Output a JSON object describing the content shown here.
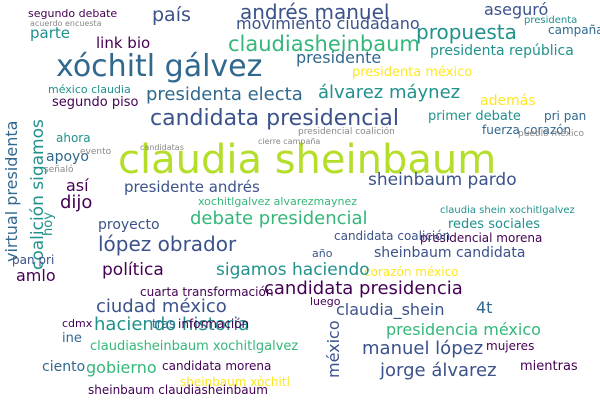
{
  "palette": {
    "dark_purple": "#440154",
    "indigo": "#3b528b",
    "teal_blue": "#31688e",
    "teal": "#21918c",
    "green": "#35b779",
    "lime": "#b5de2b",
    "yellow": "#fde725",
    "gray": "#888888"
  },
  "words": [
    {
      "text": "claudia sheinbaum",
      "color": "#b5de2b"
    },
    {
      "text": "xóchitl gálvez",
      "color": "#31688e"
    },
    {
      "text": "candidata presidencial",
      "color": "#3b528b"
    },
    {
      "text": "claudiasheinbaum",
      "color": "#35b779"
    },
    {
      "text": "andrés manuel",
      "color": "#3b528b"
    },
    {
      "text": "país",
      "color": "#3b528b"
    },
    {
      "text": "movimiento ciudadano",
      "color": "#3b528b"
    },
    {
      "text": "aseguró",
      "color": "#3b528b"
    },
    {
      "text": "propuesta",
      "color": "#21918c"
    },
    {
      "text": "presidente",
      "color": "#31688e"
    },
    {
      "text": "link bio",
      "color": "#440154"
    },
    {
      "text": "parte",
      "color": "#21918c"
    },
    {
      "text": "segundo debate",
      "color": "#440154"
    },
    {
      "text": "presidenta república",
      "color": "#21918c"
    },
    {
      "text": "campaña",
      "color": "#31688e"
    },
    {
      "text": "presidenta",
      "color": "#21918c"
    },
    {
      "text": "coalición sigamos",
      "color": "#21918c"
    },
    {
      "text": "virtual presidenta",
      "color": "#31688e"
    },
    {
      "text": "presidenta electa",
      "color": "#31688e"
    },
    {
      "text": "álvarez máynez",
      "color": "#21918c"
    },
    {
      "text": "además",
      "color": "#fde725"
    },
    {
      "text": "presidenta méxico",
      "color": "#fde725"
    },
    {
      "text": "segundo piso",
      "color": "#440154"
    },
    {
      "text": "primer debate",
      "color": "#21918c"
    },
    {
      "text": "pri pan",
      "color": "#31688e"
    },
    {
      "text": "fuerza corazón",
      "color": "#31688e"
    },
    {
      "text": "méxico claudia",
      "color": "#21918c"
    },
    {
      "text": "ahora",
      "color": "#21918c"
    },
    {
      "text": "apoyo",
      "color": "#31688e"
    },
    {
      "text": "así",
      "color": "#440154"
    },
    {
      "text": "dijo",
      "color": "#440154"
    },
    {
      "text": "hoy",
      "color": "#21918c"
    },
    {
      "text": "sheinbaum pardo",
      "color": "#3b528b"
    },
    {
      "text": "presidente andrés",
      "color": "#3b528b"
    },
    {
      "text": "debate presidencial",
      "color": "#35b779"
    },
    {
      "text": "proyecto",
      "color": "#3b528b"
    },
    {
      "text": "xochitlgalvez alvarezmaynez",
      "color": "#35b779"
    },
    {
      "text": "claudia shein xochitlgalvez",
      "color": "#21918c"
    },
    {
      "text": "redes sociales",
      "color": "#21918c"
    },
    {
      "text": "presidencial morena",
      "color": "#440154"
    },
    {
      "text": "candidata coalición",
      "color": "#3b528b"
    },
    {
      "text": "sheinbaum candidata",
      "color": "#3b528b"
    },
    {
      "text": "corazón méxico",
      "color": "#fde725"
    },
    {
      "text": "pan pri",
      "color": "#3b528b"
    },
    {
      "text": "año",
      "color": "#3b528b"
    },
    {
      "text": "amlo",
      "color": "#440154"
    },
    {
      "text": "política",
      "color": "#440154"
    },
    {
      "text": "sigamos haciendo",
      "color": "#21918c"
    },
    {
      "text": "lópez obrador",
      "color": "#3b528b"
    },
    {
      "text": "cuarta transformación",
      "color": "#440154"
    },
    {
      "text": "ciudad méxico",
      "color": "#3b528b"
    },
    {
      "text": "candidata presidencia",
      "color": "#440154"
    },
    {
      "text": "claudia_shein",
      "color": "#3b528b"
    },
    {
      "text": "4t",
      "color": "#31688e"
    },
    {
      "text": "luego",
      "color": "#440154"
    },
    {
      "text": "haciendo historia",
      "color": "#21918c"
    },
    {
      "text": "presidencia méxico",
      "color": "#35b779"
    },
    {
      "text": "tras",
      "color": "#31688e"
    },
    {
      "text": "información",
      "color": "#440154"
    },
    {
      "text": "cdmx",
      "color": "#440154"
    },
    {
      "text": "ine",
      "color": "#31688e"
    },
    {
      "text": "méxico",
      "color": "#3b528b"
    },
    {
      "text": "claudiasheinbaum xochitlgalvez",
      "color": "#35b779"
    },
    {
      "text": "manuel lópez",
      "color": "#3b528b"
    },
    {
      "text": "ciento",
      "color": "#31688e"
    },
    {
      "text": "gobierno",
      "color": "#35b779"
    },
    {
      "text": "candidata morena",
      "color": "#440154"
    },
    {
      "text": "jorge álvarez",
      "color": "#3b528b"
    },
    {
      "text": "mujeres",
      "color": "#440154"
    },
    {
      "text": "mientras",
      "color": "#440154"
    },
    {
      "text": "sheinbaum xóchitl",
      "color": "#fde725"
    },
    {
      "text": "sheinbaum claudiasheinbaum",
      "color": "#440154"
    },
    {
      "text": "acuerdo encuesta",
      "color": "#888888"
    },
    {
      "text": "evento",
      "color": "#888888"
    },
    {
      "text": "cierre campaña",
      "color": "#888888"
    },
    {
      "text": "pueblo méxico",
      "color": "#888888"
    },
    {
      "text": "candidatas",
      "color": "#888888"
    },
    {
      "text": "señaló",
      "color": "#888888"
    },
    {
      "text": "presidencial coalición",
      "color": "#888888"
    }
  ]
}
